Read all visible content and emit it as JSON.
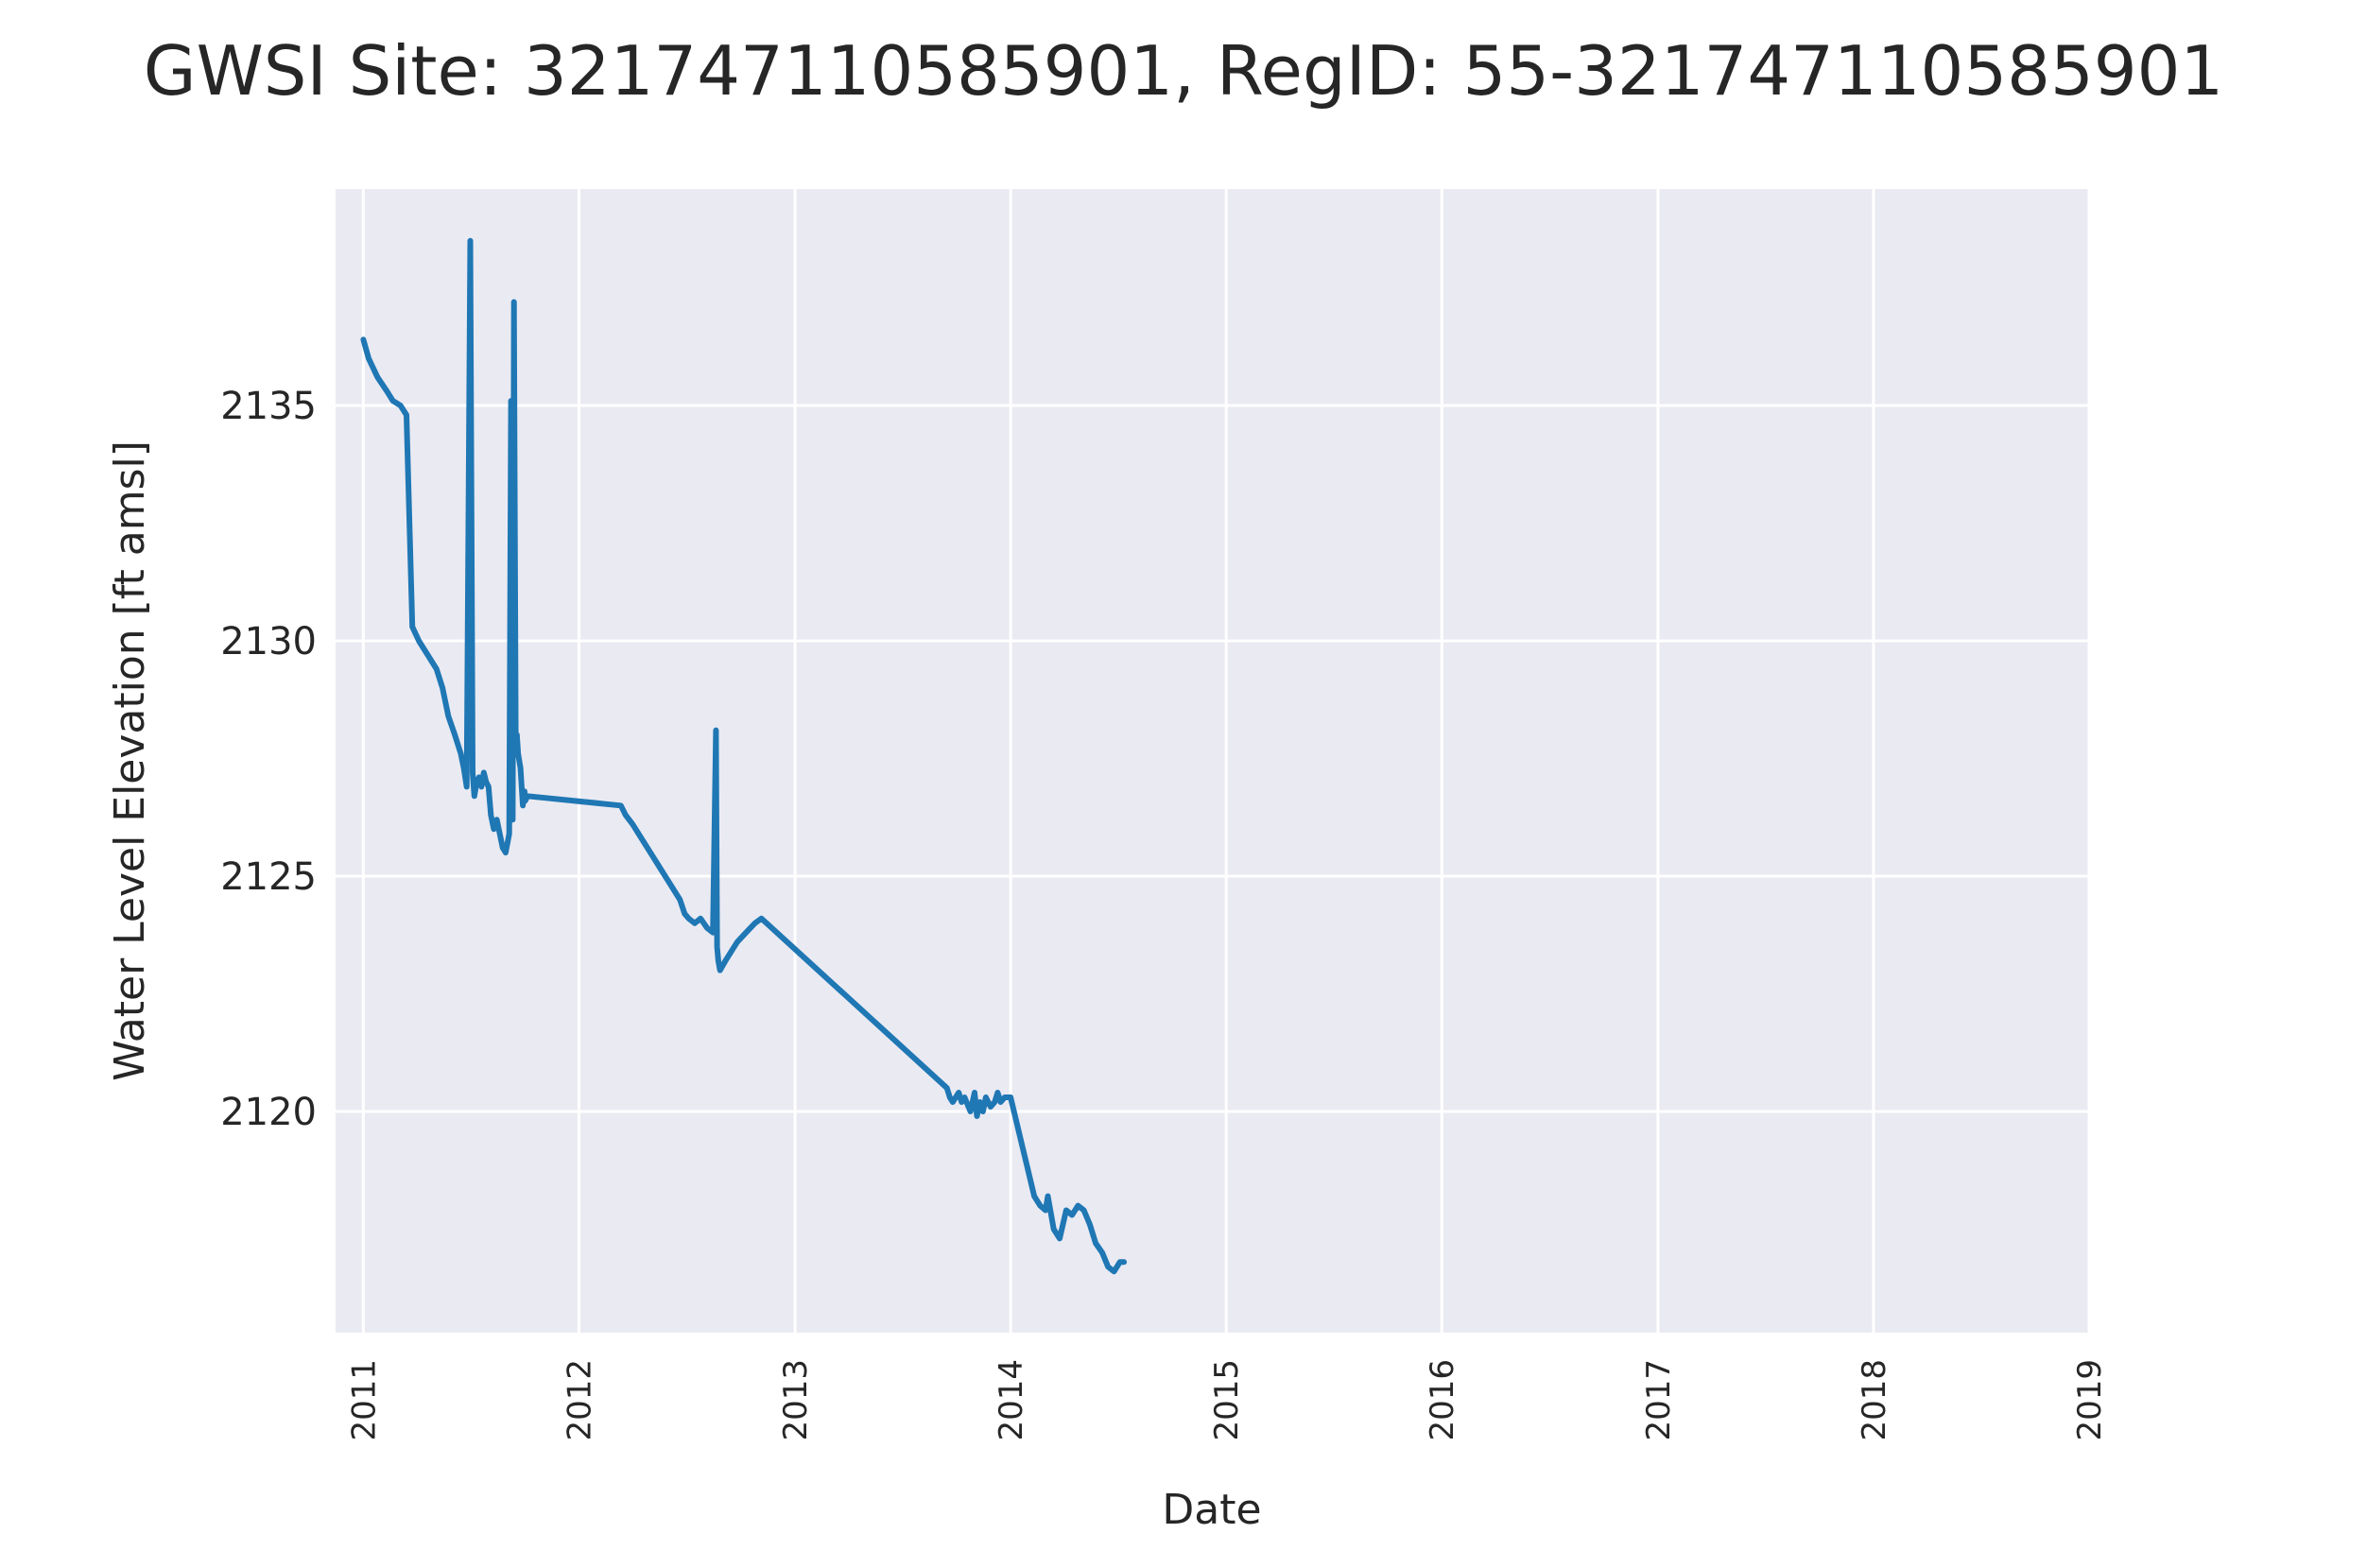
{
  "chart_data": {
    "type": "line",
    "title": "GWSI Site: 321747110585901, RegID: 55-321747110585901",
    "xlabel": "Date",
    "ylabel": "Water Level Elevation [ft amsl]",
    "x_axis_type": "date",
    "xlim": [
      "2010-11-15",
      "2019-01-01"
    ],
    "ylim": [
      2115.3,
      2139.6
    ],
    "x_ticks": [
      "2011",
      "2012",
      "2013",
      "2014",
      "2015",
      "2016",
      "2017",
      "2018",
      "2019"
    ],
    "y_ticks": [
      2120,
      2125,
      2130,
      2135
    ],
    "grid": true,
    "background": "#eaeaf2",
    "line_color": "#1f77b4",
    "series": [
      {
        "x": [
          "2011-01-01",
          "2011-01-10",
          "2011-01-25",
          "2011-02-10",
          "2011-02-20",
          "2011-03-05",
          "2011-03-15",
          "2011-03-25",
          "2011-04-05",
          "2011-04-10",
          "2011-04-20",
          "2011-05-05",
          "2011-05-15",
          "2011-05-25",
          "2011-06-05",
          "2011-06-15",
          "2011-06-20",
          "2011-06-25",
          "2011-07-01",
          "2011-07-05",
          "2011-07-08",
          "2011-07-12",
          "2011-07-16",
          "2011-07-20",
          "2011-07-24",
          "2011-07-28",
          "2011-08-01",
          "2011-08-05",
          "2011-08-10",
          "2011-08-15",
          "2011-08-20",
          "2011-08-25",
          "2011-08-30",
          "2011-09-05",
          "2011-09-08",
          "2011-09-11",
          "2011-09-13",
          "2011-09-16",
          "2011-09-18",
          "2011-09-20",
          "2011-09-24",
          "2011-09-28",
          "2011-10-01",
          "2011-10-02",
          "2011-10-06",
          "2012-03-12",
          "2012-03-20",
          "2012-04-01",
          "2012-06-20",
          "2012-06-28",
          "2012-07-05",
          "2012-07-15",
          "2012-07-25",
          "2012-08-05",
          "2012-08-15",
          "2012-08-20",
          "2012-08-22",
          "2012-08-24",
          "2012-08-27",
          "2012-09-05",
          "2012-09-15",
          "2012-09-25",
          "2012-10-10",
          "2012-10-25",
          "2012-11-05",
          "2013-09-15",
          "2013-09-20",
          "2013-09-25",
          "2013-10-05",
          "2013-10-10",
          "2013-10-15",
          "2013-10-25",
          "2013-11-01",
          "2013-11-05",
          "2013-11-10",
          "2013-11-15",
          "2013-11-20",
          "2013-11-28",
          "2013-12-05",
          "2013-12-10",
          "2013-12-15",
          "2013-12-22",
          "2014-01-01",
          "2014-02-10",
          "2014-02-20",
          "2014-03-01",
          "2014-03-05",
          "2014-03-15",
          "2014-03-25",
          "2014-04-05",
          "2014-04-15",
          "2014-04-25",
          "2014-05-05",
          "2014-05-15",
          "2014-05-25",
          "2014-06-05",
          "2014-06-15",
          "2014-06-25",
          "2014-07-05",
          "2014-07-12"
        ],
        "y": [
          2136.4,
          2136.0,
          2135.6,
          2135.3,
          2135.1,
          2135.0,
          2134.8,
          2130.3,
          2130.0,
          2129.9,
          2129.7,
          2129.4,
          2129.0,
          2128.4,
          2128.0,
          2127.6,
          2127.3,
          2126.9,
          2138.5,
          2127.2,
          2126.7,
          2127.0,
          2127.1,
          2126.9,
          2127.2,
          2127.0,
          2126.9,
          2126.3,
          2126.0,
          2126.2,
          2125.9,
          2125.6,
          2125.5,
          2125.9,
          2135.1,
          2126.2,
          2137.2,
          2127.8,
          2128.0,
          2127.6,
          2127.3,
          2126.5,
          2126.8,
          2126.6,
          2126.7,
          2126.5,
          2126.3,
          2126.1,
          2124.5,
          2124.2,
          2124.1,
          2124.0,
          2124.1,
          2123.9,
          2123.8,
          2128.1,
          2123.5,
          2123.2,
          2123.0,
          2123.2,
          2123.4,
          2123.6,
          2123.8,
          2124.0,
          2124.1,
          2120.5,
          2120.3,
          2120.2,
          2120.4,
          2120.2,
          2120.3,
          2120.0,
          2120.4,
          2119.9,
          2120.2,
          2120.0,
          2120.3,
          2120.1,
          2120.2,
          2120.4,
          2120.2,
          2120.3,
          2120.3,
          2118.2,
          2118.0,
          2117.9,
          2118.2,
          2117.5,
          2117.3,
          2117.9,
          2117.8,
          2118.0,
          2117.9,
          2117.6,
          2117.2,
          2117.0,
          2116.7,
          2116.6,
          2116.8,
          2116.8
        ]
      }
    ]
  }
}
